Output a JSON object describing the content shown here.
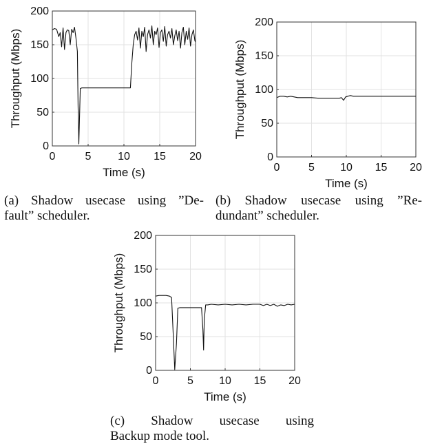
{
  "chart_data": [
    {
      "type": "line",
      "xlabel": "Time (s)",
      "ylabel": "Throughput (Mbps)",
      "xlim": [
        0,
        20
      ],
      "ylim": [
        0,
        200
      ],
      "xticks": [
        0,
        5,
        10,
        15,
        20
      ],
      "yticks": [
        0,
        50,
        100,
        150,
        200
      ],
      "grid": true,
      "series": [
        {
          "x": [
            0,
            0.3,
            0.6,
            0.9,
            1.1,
            1.3,
            1.5,
            1.7,
            1.9,
            2.1,
            2.3,
            2.5,
            2.7,
            2.9,
            3.1,
            3.3,
            3.5,
            3.6,
            3.7,
            3.9,
            4.1,
            5,
            7,
            9,
            10.9,
            11.1,
            11.3,
            11.5,
            11.7,
            11.9,
            12.1,
            12.3,
            12.5,
            12.7,
            12.9,
            13.1,
            13.3,
            13.5,
            13.7,
            13.9,
            14.1,
            14.3,
            14.5,
            14.7,
            14.9,
            15.1,
            15.3,
            15.5,
            15.7,
            15.9,
            16.1,
            16.3,
            16.5,
            16.7,
            16.9,
            17.1,
            17.3,
            17.5,
            17.7,
            17.9,
            18.1,
            18.3,
            18.5,
            18.7,
            18.9,
            19.1,
            19.3,
            19.5,
            19.7,
            19.9,
            20
          ],
          "y": [
            172,
            174,
            173,
            162,
            168,
            147,
            175,
            143,
            168,
            172,
            171,
            150,
            173,
            168,
            176,
            160,
            140,
            60,
            3,
            85,
            86,
            86,
            86,
            86,
            86,
            122,
            150,
            165,
            170,
            157,
            175,
            145,
            170,
            162,
            176,
            140,
            165,
            172,
            160,
            178,
            150,
            170,
            165,
            175,
            146,
            168,
            172,
            155,
            177,
            148,
            165,
            170,
            160,
            174,
            150,
            163,
            172,
            156,
            170,
            145,
            168,
            176,
            150,
            170,
            158,
            175,
            148,
            165,
            172,
            156,
            154
          ]
        }
      ]
    },
    {
      "type": "line",
      "xlabel": "Time (s)",
      "ylabel": "Throughput (Mbps)",
      "xlim": [
        0,
        20
      ],
      "ylim": [
        0,
        200
      ],
      "xticks": [
        0,
        5,
        10,
        15,
        20
      ],
      "yticks": [
        0,
        50,
        100,
        150,
        200
      ],
      "grid": true,
      "series": [
        {
          "x": [
            0,
            0.5,
            1,
            1.5,
            2,
            2.5,
            3,
            4,
            5,
            6,
            7,
            8,
            9,
            9.3,
            9.6,
            9.9,
            10.2,
            10.6,
            11,
            12,
            13,
            14,
            15,
            16,
            17,
            18,
            19,
            20
          ],
          "y": [
            88,
            90,
            90,
            89,
            90,
            89,
            88,
            88,
            88,
            87,
            87,
            87,
            87,
            88,
            84,
            89,
            90,
            91,
            90,
            90,
            90,
            90,
            90,
            90,
            90,
            90,
            90,
            90
          ]
        }
      ]
    },
    {
      "type": "line",
      "xlabel": "Time (s)",
      "ylabel": "Throughput (Mbps)",
      "xlim": [
        0,
        20
      ],
      "ylim": [
        0,
        200
      ],
      "xticks": [
        0,
        5,
        10,
        15,
        20
      ],
      "yticks": [
        0,
        50,
        100,
        150,
        200
      ],
      "grid": true,
      "series": [
        {
          "x": [
            0,
            0.5,
            1,
            1.5,
            2,
            2.3,
            2.5,
            2.75,
            3.0,
            3.2,
            3.5,
            4,
            5,
            6,
            6.6,
            6.8,
            6.9,
            7.0,
            7.2,
            7.5,
            8,
            9,
            10,
            11,
            12,
            13,
            14,
            15,
            15.5,
            16,
            16.5,
            17,
            17.5,
            18,
            18.5,
            19,
            19.5,
            20
          ],
          "y": [
            110,
            111,
            111,
            111,
            110,
            108,
            60,
            1,
            40,
            92,
            93,
            93,
            93,
            93,
            93,
            60,
            30,
            75,
            97,
            97,
            98,
            97,
            98,
            97,
            98,
            97,
            98,
            98,
            96,
            98,
            96,
            98,
            95,
            97,
            96,
            98,
            97,
            98
          ]
        }
      ]
    }
  ],
  "captions": {
    "a": {
      "line1": "(a) Shadow usecase using ”De-",
      "line2": "fault” scheduler."
    },
    "b": {
      "line1": "(b) Shadow usecase using ”Re-",
      "line2": "dundant” scheduler."
    },
    "c": {
      "line1": "(c) Shadow usecase using",
      "line2": "Backup mode tool."
    }
  }
}
